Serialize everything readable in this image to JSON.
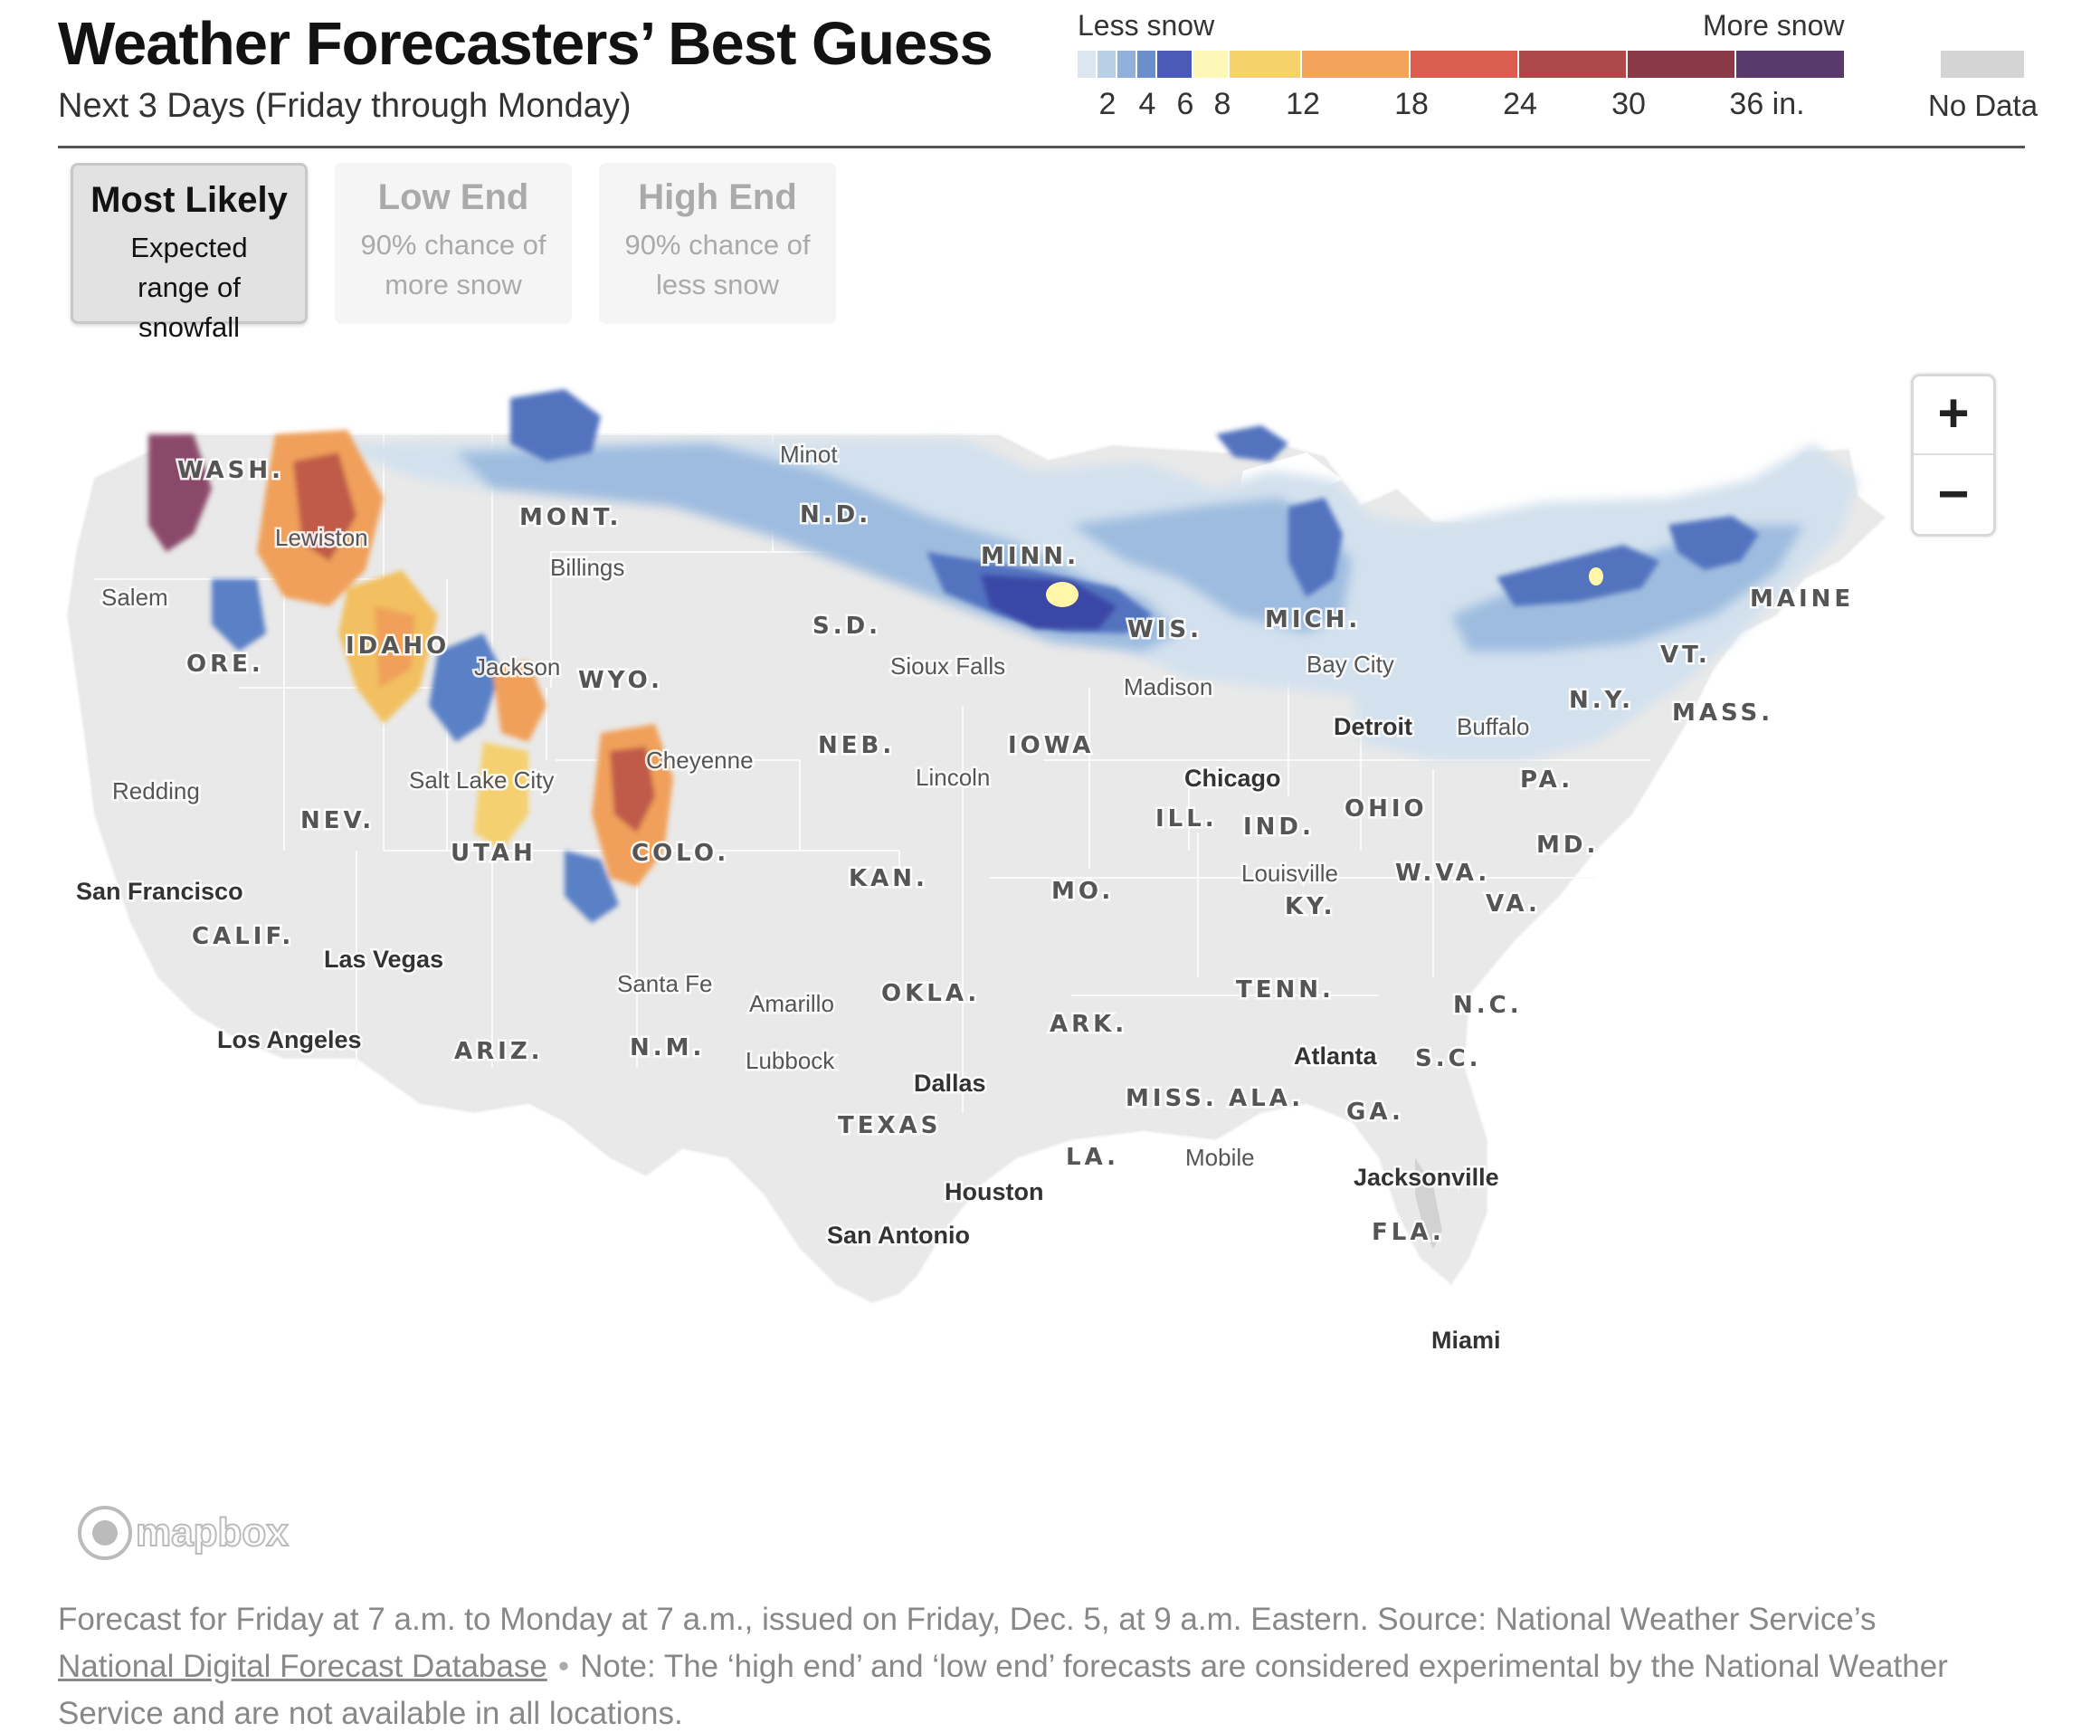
{
  "header": {
    "title": "Weather Forecasters’ Best Guess",
    "subtitle": "Next 3 Days (Friday through Monday)"
  },
  "legend": {
    "less_label": "Less snow",
    "more_label": "More snow",
    "ticks": [
      "2",
      "4",
      "6",
      "8",
      "12",
      "18",
      "24",
      "30",
      "36 in."
    ],
    "colors": [
      "#dbe6f0",
      "#b8cfe6",
      "#91b1da",
      "#6a8fcb",
      "#4a5ab5",
      "#fdf7b8",
      "#f5d26a",
      "#f2a45c",
      "#d95d50",
      "#ae4848",
      "#8a3a47",
      "#5a3a6c"
    ],
    "no_data_label": "No Data",
    "no_data_color": "#d4d4d4"
  },
  "toggles": [
    {
      "title": "Most Likely",
      "desc": "Expected range of snowfall",
      "active": true
    },
    {
      "title": "Low End",
      "desc": "90% chance of more snow",
      "active": false
    },
    {
      "title": "High End",
      "desc": "90% chance of less snow",
      "active": false
    }
  ],
  "zoom": {
    "in_label": "+",
    "out_label": "−"
  },
  "map": {
    "states": [
      "WASH.",
      "MONT.",
      "N.D.",
      "MINN.",
      "MAINE",
      "S.D.",
      "WIS.",
      "MICH.",
      "IDAHO",
      "ORE.",
      "WYO.",
      "VT.",
      "N.Y.",
      "MASS.",
      "IOWA",
      "NEB.",
      "PA.",
      "NEV.",
      "UTAH",
      "COLO.",
      "ILL.",
      "IND.",
      "OHIO",
      "MD.",
      "KAN.",
      "MO.",
      "W.VA.",
      "KY.",
      "VA.",
      "CALIF.",
      "TENN.",
      "OKLA.",
      "N.C.",
      "ARK.",
      "ARIZ.",
      "N.M.",
      "S.C.",
      "MISS.",
      "ALA.",
      "GA.",
      "TEXAS",
      "LA.",
      "FLA."
    ],
    "cities_bold": [
      "San Francisco",
      "Las Vegas",
      "Los Angeles",
      "Detroit",
      "Chicago",
      "Dallas",
      "Atlanta",
      "Houston",
      "San Antonio",
      "Jacksonville",
      "Miami"
    ],
    "cities": [
      "Minot",
      "Lewiston",
      "Billings",
      "Salem",
      "Jackson",
      "Bay City",
      "Sioux Falls",
      "Madison",
      "Buffalo",
      "Cheyenne",
      "Salt Lake City",
      "Redding",
      "Lincoln",
      "Louisville",
      "Santa Fe",
      "Amarillo",
      "Lubbock",
      "Mobile"
    ],
    "attribution": "mapbox"
  },
  "footer": {
    "text_1": "Forecast for Friday at 7 a.m. to Monday at 7 a.m., issued on Friday, Dec. 5, at 9 a.m. Eastern. Source: National Weather Service’s ",
    "link": "National Digital Forecast Database",
    "sep": "•",
    "text_2": "Note: The ‘high end’ and ‘low end’ forecasts are considered experimental by the National Weather Service and are not available in all locations."
  }
}
